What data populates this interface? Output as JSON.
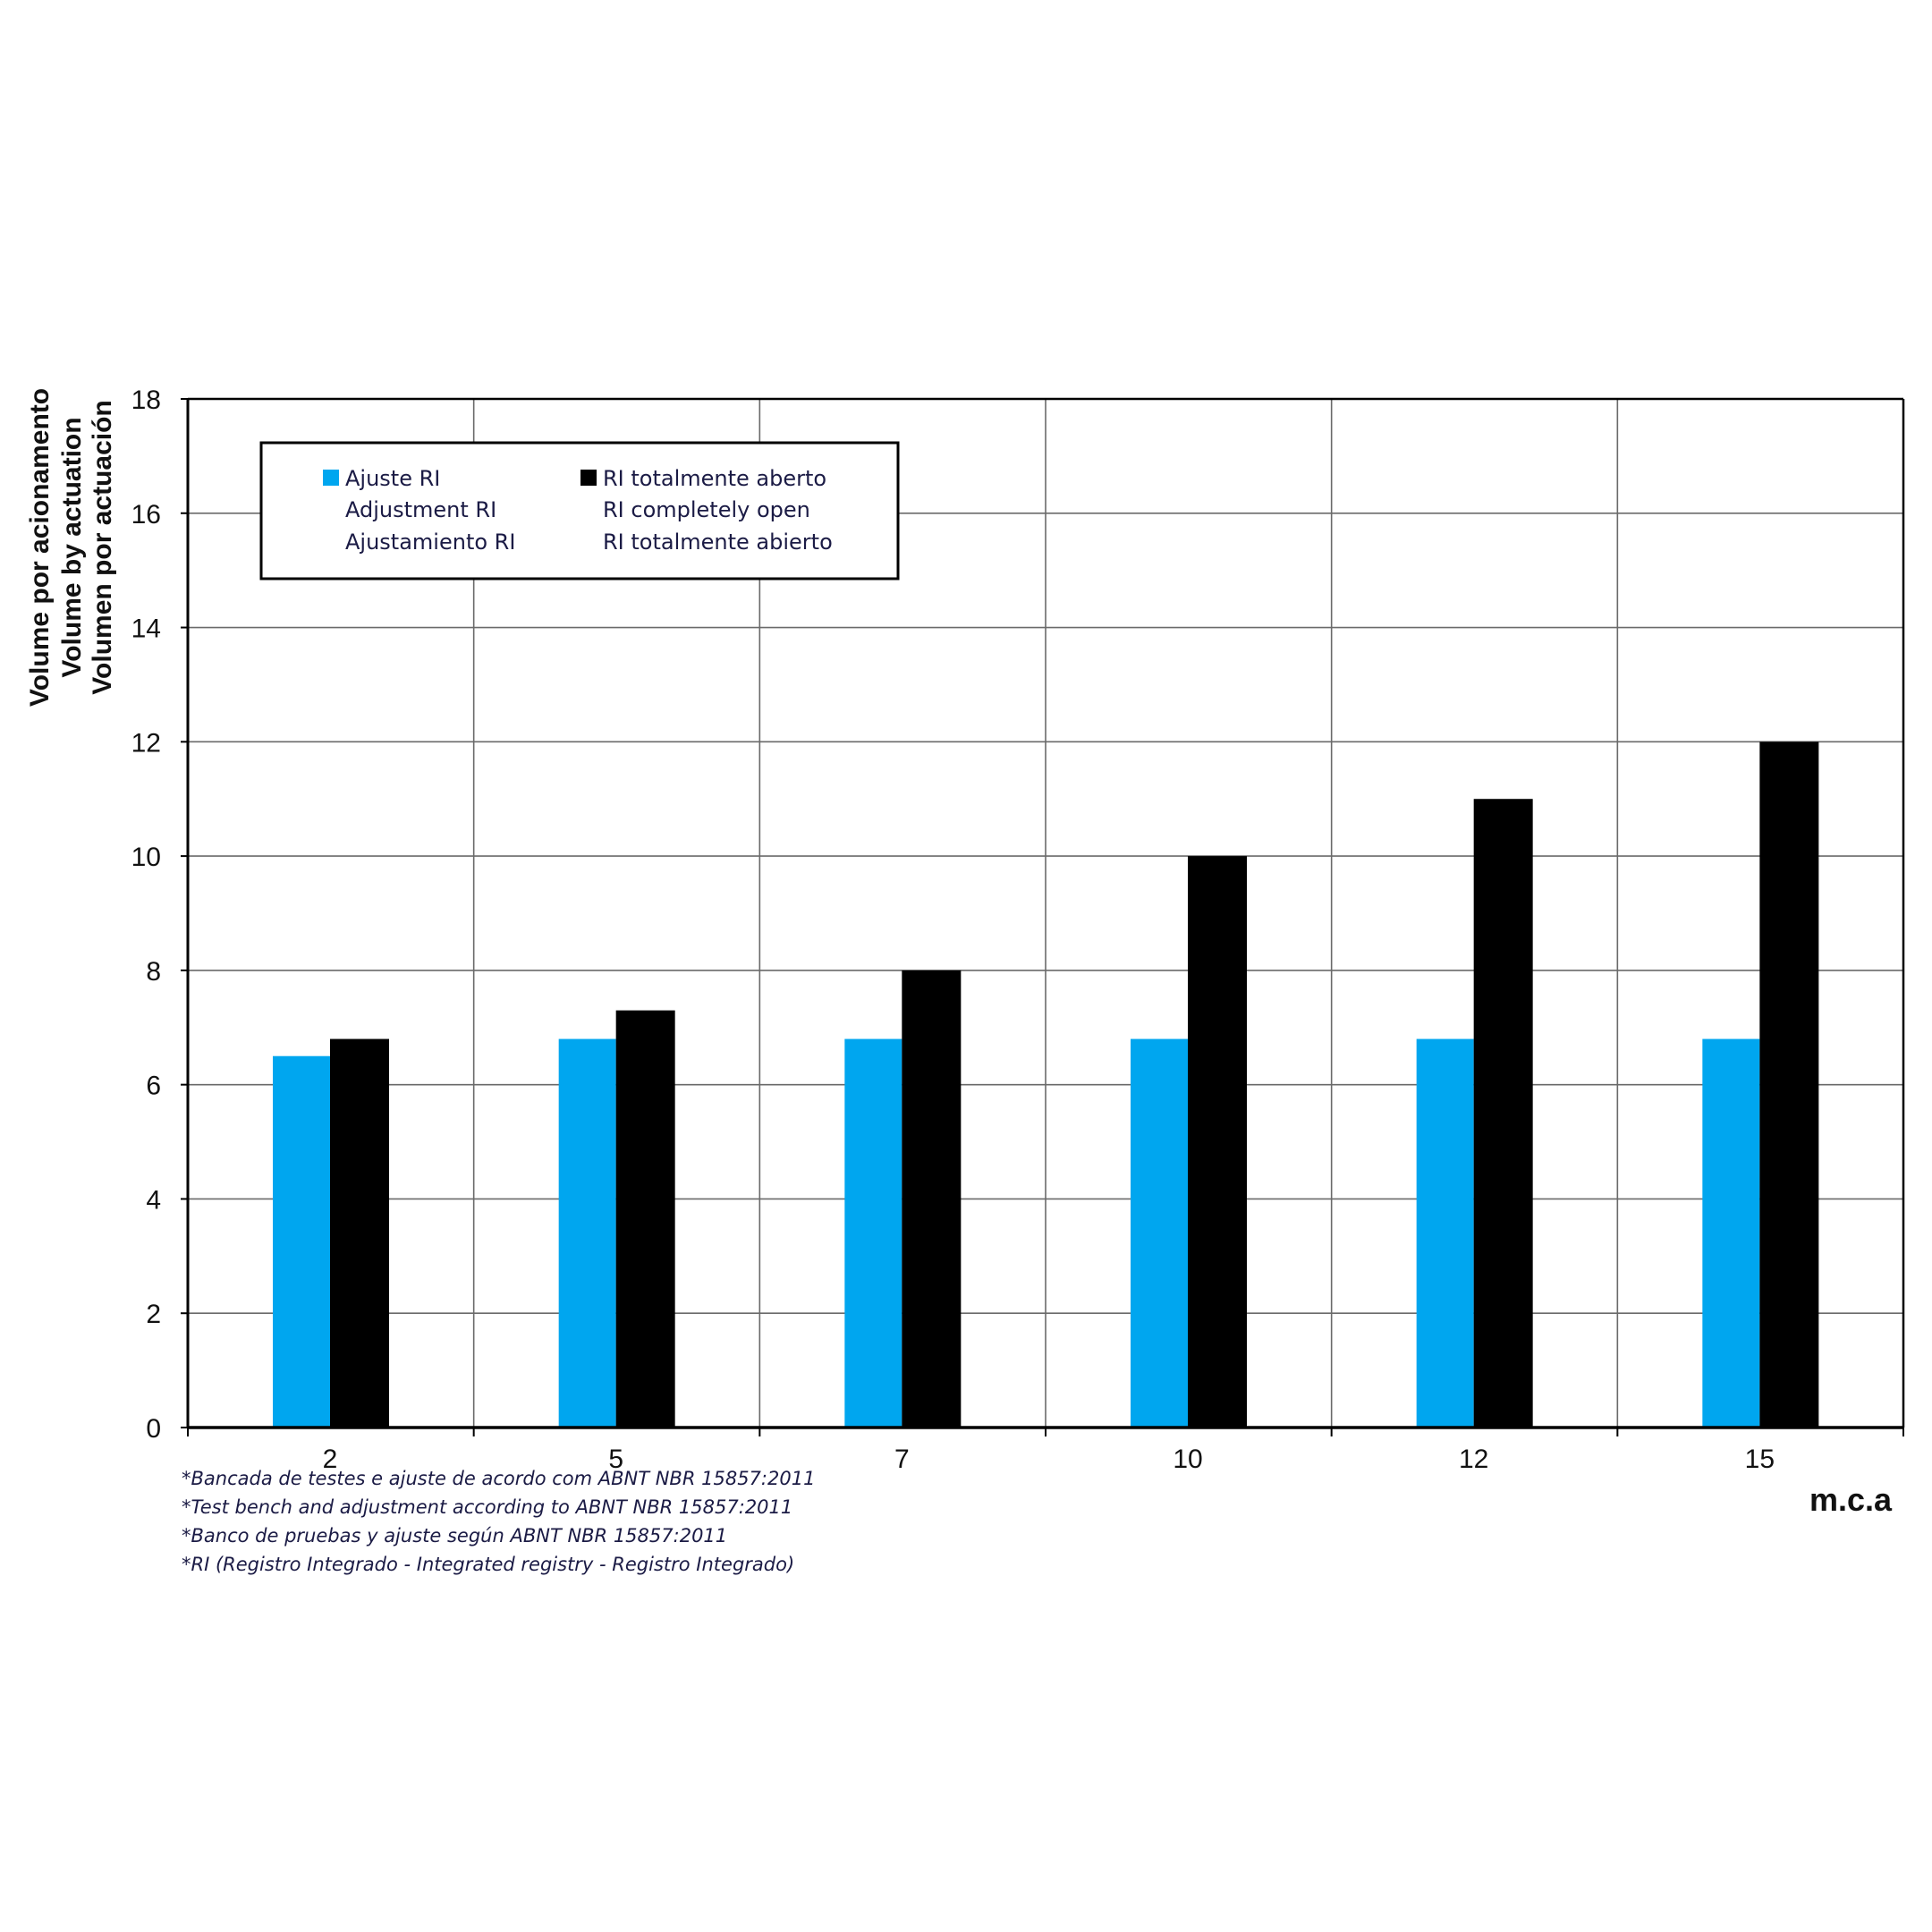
{
  "chart_data": {
    "type": "bar",
    "categories": [
      "2",
      "5",
      "7",
      "10",
      "12",
      "15"
    ],
    "series": [
      {
        "name": "Ajuste RI",
        "name_lines": [
          "Ajuste RI",
          "Adjustment RI",
          "Ajustamiento RI"
        ],
        "color": "#00a6ef",
        "values": [
          6.5,
          6.8,
          6.8,
          6.8,
          6.8,
          6.8
        ]
      },
      {
        "name": "RI totalmente aberto",
        "name_lines": [
          "RI totalmente aberto",
          "RI completely open",
          "RI totalmente abierto"
        ],
        "color": "#000000",
        "values": [
          6.8,
          7.3,
          8.0,
          10.0,
          11.0,
          12.0
        ]
      }
    ],
    "ylabel_lines": [
      "Volume por acionamento",
      "Volume by actuation",
      "Volumen por actuación"
    ],
    "xlabel": "m.c.a",
    "ylim": [
      0,
      18
    ],
    "yticks": [
      "0",
      "2",
      "4",
      "6",
      "8",
      "10",
      "12",
      "14",
      "16",
      "18"
    ],
    "grid": true,
    "legend_position": "top-left",
    "notes": [
      "*Bancada de testes e ajuste de acordo com ABNT NBR 15857:2011",
      "*Test bench and adjustment according to ABNT NBR 15857:2011",
      "*Banco de pruebas y ajuste según ABNT NBR 15857:2011",
      "*RI (Registro Integrado - Integrated registry - Registro Integrado)"
    ]
  }
}
